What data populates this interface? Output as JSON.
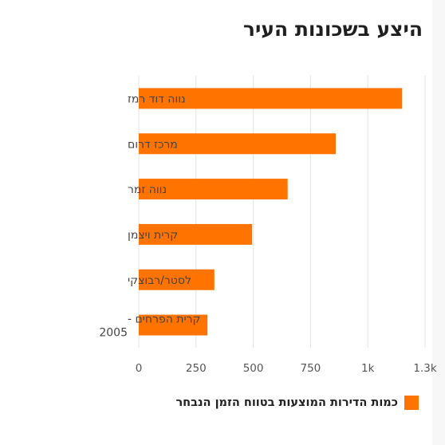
{
  "chart_data": {
    "type": "bar",
    "orientation": "horizontal",
    "title": "היצע בשכונות העיר",
    "categories": [
      "נווה דוד רמז",
      "מרכז דרום",
      "נווה זמר",
      "קרית ויצמן",
      "לסטר/רבוצקי",
      "קרית הפרחים - 2005"
    ],
    "series": [
      {
        "name": "כמות הדירות המוצעות בטווח הזמן הנבחר",
        "values": [
          1150,
          860,
          650,
          495,
          330,
          300
        ]
      }
    ],
    "xlim": [
      0,
      1250
    ],
    "xticks": [
      0,
      250,
      500,
      750,
      1000,
      1250
    ],
    "xtick_labels": [
      "0",
      "250",
      "500",
      "750",
      "1k",
      "1.3k"
    ],
    "grid": true,
    "legend_position": "bottom-right",
    "colors": {
      "bar": "#ff7300",
      "grid": "#e4e4e4",
      "axis_text": "#555555",
      "category_text": "#444444"
    }
  }
}
